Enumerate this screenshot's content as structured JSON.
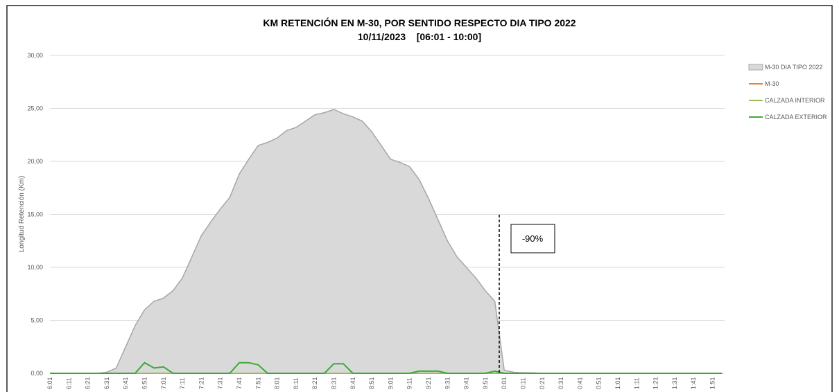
{
  "chart_data": {
    "type": "area",
    "title": "KM RETENCIÓN EN M-30, POR SENTIDO RESPECTO DIA TIPO 2022",
    "subtitle": "10/11/2023    [06:01 - 10:00]",
    "y_label": "Longitud Retención (Km)",
    "annotation": "-90%",
    "categories": [
      "6:01",
      null,
      "6:11",
      null,
      "6:21",
      null,
      "6:31",
      null,
      "6:41",
      null,
      "6:51",
      null,
      "7:01",
      null,
      "7:11",
      null,
      "7:21",
      null,
      "7:31",
      null,
      "7:41",
      null,
      "7:51",
      null,
      "8:01",
      null,
      "8:11",
      null,
      "8:21",
      null,
      "8:31",
      null,
      "8:41",
      null,
      "8:51",
      null,
      "9:01",
      null,
      "9:11",
      null,
      "9:21",
      null,
      "9:31",
      null,
      "9:41",
      null,
      "9:51",
      null,
      "0:01",
      null,
      "0:11",
      null,
      "0:21",
      null,
      "0:31",
      null,
      "0:41",
      null,
      "0:51",
      null,
      "1:01",
      null,
      "1:11",
      null,
      "1:21",
      null,
      "1:31",
      null,
      "1:41",
      null,
      "1:51",
      null
    ],
    "ylim": [
      0,
      30
    ],
    "yticks": [
      {
        "value": 0,
        "label": "0,00"
      },
      {
        "value": 5,
        "label": "5,00"
      },
      {
        "value": 10,
        "label": "10,00"
      },
      {
        "value": 15,
        "label": "15,00"
      },
      {
        "value": 20,
        "label": "20,00"
      },
      {
        "value": 25,
        "label": "25,00"
      },
      {
        "value": 30,
        "label": "30,00"
      }
    ],
    "grid": true,
    "legend": "right",
    "series": [
      {
        "name": "M-30 DIA TIPO 2022",
        "color": "#d9d9d9",
        "style": "area",
        "values": [
          0,
          0,
          0,
          0,
          0,
          0,
          0.1,
          0.5,
          2.5,
          4.5,
          6.0,
          6.8,
          7.1,
          7.8,
          9,
          11,
          13,
          14.3,
          15.5,
          16.6,
          18.8,
          20.2,
          21.5,
          21.8,
          22.2,
          22.9,
          23.2,
          23.8,
          24.4,
          24.6,
          24.9,
          24.5,
          24.2,
          23.8,
          22.8,
          21.5,
          20.2,
          19.9,
          19.5,
          18.3,
          16.5,
          14.5,
          12.5,
          11,
          10,
          9,
          7.8,
          6.8,
          0.3,
          0.1,
          0.05,
          0.05,
          0,
          0,
          0,
          0,
          0,
          0,
          0,
          0,
          0,
          0,
          0,
          0,
          0,
          0,
          0,
          0,
          0,
          0,
          0,
          0
        ]
      },
      {
        "name": "M-30",
        "color": "#ed7d31",
        "style": "line",
        "values": [
          0,
          0,
          0,
          0,
          0,
          0,
          0,
          0,
          0,
          0,
          0,
          0,
          0,
          0,
          0,
          0,
          0,
          0,
          0,
          0,
          0,
          0,
          0,
          0,
          0,
          0,
          0,
          0,
          0,
          0,
          0,
          0,
          0,
          0,
          0,
          0,
          0,
          0,
          0,
          0,
          0,
          0,
          0,
          0,
          0,
          0,
          0,
          0,
          0,
          0,
          0,
          0,
          0,
          0,
          0,
          0,
          0,
          0,
          0,
          0,
          0,
          0,
          0,
          0,
          0,
          0,
          0,
          0,
          0,
          0,
          0,
          0
        ]
      },
      {
        "name": "CALZADA INTERIOR",
        "color": "#9bbb59",
        "style": "line",
        "values": [
          0,
          0,
          0,
          0,
          0,
          0,
          0,
          0,
          0,
          0,
          0,
          0,
          0,
          0,
          0,
          0,
          0,
          0,
          0,
          0,
          0,
          0,
          0,
          0,
          0,
          0,
          0,
          0,
          0,
          0,
          0,
          0,
          0,
          0,
          0,
          0,
          0,
          0,
          0,
          0,
          0,
          0,
          0,
          0,
          0,
          0,
          0,
          0,
          0,
          0,
          0,
          0,
          0,
          0,
          0,
          0,
          0,
          0,
          0,
          0,
          0,
          0,
          0,
          0,
          0,
          0,
          0,
          0,
          0,
          0,
          0,
          0
        ]
      },
      {
        "name": "CALZADA EXTERIOR",
        "color": "#3aaa35",
        "style": "line",
        "values": [
          0,
          0,
          0,
          0,
          0,
          0,
          0,
          0,
          0,
          0,
          1.0,
          0.5,
          0.6,
          0,
          0,
          0,
          0,
          0,
          0,
          0,
          1.0,
          1.0,
          0.8,
          0,
          0,
          0,
          0,
          0,
          0,
          0,
          0.9,
          0.9,
          0,
          0,
          0,
          0,
          0,
          0,
          0,
          0.2,
          0.2,
          0.2,
          0,
          0,
          0,
          0,
          0,
          0.2,
          0,
          0,
          0,
          0,
          0,
          0,
          0,
          0,
          0,
          0,
          0,
          0,
          0,
          0,
          0,
          0,
          0,
          0,
          0,
          0,
          0,
          0,
          0,
          0
        ]
      }
    ]
  }
}
